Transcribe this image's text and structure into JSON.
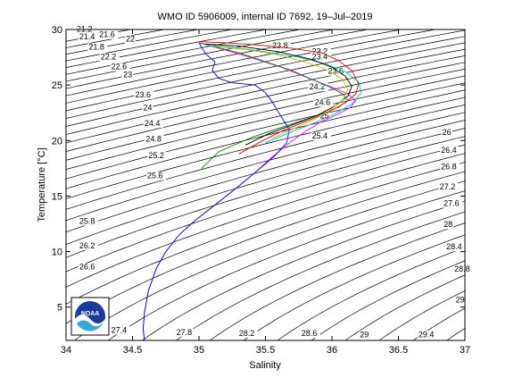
{
  "chart_data": {
    "type": "line",
    "title": "WMO ID 5906009, internal ID 7692, 19–Jul–2019",
    "xlabel": "Salinity",
    "ylabel": "Temperature [°C]",
    "xlim": [
      34,
      37
    ],
    "ylim": [
      2,
      30
    ],
    "x_ticks": [
      34,
      34.5,
      35,
      35.5,
      36,
      36.5,
      37
    ],
    "x_tick_labels": [
      "34",
      "34.5",
      "35",
      "35.5",
      "36",
      "36.5",
      "37"
    ],
    "y_ticks": [
      5,
      10,
      15,
      20,
      25,
      30
    ],
    "y_tick_labels": [
      "5",
      "10",
      "15",
      "20",
      "25",
      "30"
    ],
    "grid": false,
    "legend": "none",
    "logo": "NOAA",
    "density_contours": {
      "levels": [
        21.2,
        21.4,
        21.6,
        21.8,
        22,
        22.2,
        22.4,
        22.6,
        22.8,
        23,
        23.2,
        23.4,
        23.6,
        23.8,
        24,
        24.2,
        24.4,
        24.6,
        24.8,
        25,
        25.2,
        25.4,
        25.6,
        25.8,
        26,
        26.2,
        26.4,
        26.6,
        26.8,
        27,
        27.2,
        27.4,
        27.6,
        27.8,
        28,
        28.2,
        28.4,
        28.6,
        28.8,
        29,
        29.2,
        29.4
      ],
      "labels": [
        {
          "text": "21.2",
          "s": 34.08,
          "t": 29.8
        },
        {
          "text": "21.4",
          "s": 34.1,
          "t": 29.1
        },
        {
          "text": "21.6",
          "s": 34.25,
          "t": 29.3
        },
        {
          "text": "21.8",
          "s": 34.17,
          "t": 28.2
        },
        {
          "text": "22",
          "s": 34.45,
          "t": 28.9
        },
        {
          "text": "22.2",
          "s": 34.26,
          "t": 27.3
        },
        {
          "text": "22.6",
          "s": 34.34,
          "t": 26.4
        },
        {
          "text": "23",
          "s": 34.43,
          "t": 25.7
        },
        {
          "text": "23.6",
          "s": 34.52,
          "t": 23.9
        },
        {
          "text": "24",
          "s": 34.58,
          "t": 22.7
        },
        {
          "text": "24.4",
          "s": 34.59,
          "t": 21.3
        },
        {
          "text": "24.8",
          "s": 34.6,
          "t": 19.9
        },
        {
          "text": "25.2",
          "s": 34.62,
          "t": 18.4
        },
        {
          "text": "25.6",
          "s": 34.61,
          "t": 16.6
        },
        {
          "text": "25.8",
          "s": 34.1,
          "t": 12.5
        },
        {
          "text": "26.2",
          "s": 34.1,
          "t": 10.3
        },
        {
          "text": "26.6",
          "s": 34.1,
          "t": 8.4
        },
        {
          "text": "27.4",
          "s": 34.34,
          "t": 2.7
        },
        {
          "text": "27.8",
          "s": 34.83,
          "t": 2.5
        },
        {
          "text": "28.2",
          "s": 35.3,
          "t": 2.4
        },
        {
          "text": "28.6",
          "s": 35.77,
          "t": 2.4
        },
        {
          "text": "29",
          "s": 36.21,
          "t": 2.3
        },
        {
          "text": "29.4",
          "s": 36.65,
          "t": 2.3
        },
        {
          "text": "26",
          "s": 36.83,
          "t": 20.5
        },
        {
          "text": "26.4",
          "s": 36.82,
          "t": 18.9
        },
        {
          "text": "26.8",
          "s": 36.82,
          "t": 17.4
        },
        {
          "text": "27.2",
          "s": 36.81,
          "t": 15.6
        },
        {
          "text": "27.6",
          "s": 36.84,
          "t": 14.1
        },
        {
          "text": "28",
          "s": 36.84,
          "t": 12.2
        },
        {
          "text": "28.4",
          "s": 36.86,
          "t": 10.2
        },
        {
          "text": "28.8",
          "s": 36.92,
          "t": 8.2
        },
        {
          "text": "29",
          "s": 36.93,
          "t": 5.4
        },
        {
          "text": "23.2",
          "s": 35.85,
          "t": 27.8
        },
        {
          "text": "23.4",
          "s": 35.85,
          "t": 27.3
        },
        {
          "text": "23.6",
          "s": 35.97,
          "t": 26.0
        },
        {
          "text": "23.8",
          "s": 35.55,
          "t": 28.3
        },
        {
          "text": "24.2",
          "s": 35.83,
          "t": 24.6
        },
        {
          "text": "24.6",
          "s": 35.87,
          "t": 23.2
        },
        {
          "text": "25",
          "s": 35.91,
          "t": 22.0
        },
        {
          "text": "25.4",
          "s": 35.85,
          "t": 20.2
        }
      ]
    },
    "series": [
      {
        "color": "#ff00ff",
        "x": [
          34.59,
          34.58,
          34.59,
          34.62,
          34.68,
          34.75,
          34.85,
          34.97,
          35.12,
          35.28,
          35.42,
          35.55,
          35.68,
          35.8,
          35.92,
          36.05,
          36.14,
          36.18,
          36.12,
          36.0,
          35.85,
          35.62,
          35.3,
          35.0
        ],
        "y": [
          2,
          3,
          4.5,
          6.5,
          8.5,
          10,
          11.5,
          12.8,
          14.2,
          15.7,
          17.1,
          18.5,
          19.8,
          20.8,
          21.7,
          22.4,
          23,
          23.6,
          24.2,
          24.8,
          25.5,
          26.6,
          27.8,
          28.8
        ]
      },
      {
        "color": "#0000ff",
        "x": [
          34.59,
          34.58,
          34.59,
          34.62,
          34.68,
          34.75,
          34.85,
          34.97,
          35.12,
          35.28,
          35.42,
          35.56,
          35.66,
          35.68,
          35.6,
          35.55,
          35.5,
          35.42,
          35.25,
          35.15,
          35.1,
          35.12,
          35.05,
          35.0
        ],
        "y": [
          2,
          3,
          4.5,
          6.5,
          8.5,
          10,
          11.5,
          12.8,
          14.2,
          15.7,
          17.1,
          18.5,
          19.8,
          21.0,
          22.5,
          23.5,
          24.3,
          25.0,
          25.2,
          25.6,
          26.3,
          27.1,
          27.8,
          28.8
        ]
      },
      {
        "color": "#008000",
        "x": [
          35.0,
          35.1,
          35.3,
          35.5,
          35.7,
          35.85,
          35.97,
          36.08,
          36.12,
          36.05,
          35.9,
          35.7,
          35.4,
          35.15,
          35.02
        ],
        "y": [
          28.8,
          28.5,
          27.9,
          27.1,
          26.3,
          25.5,
          24.9,
          24.2,
          23.6,
          23.0,
          22.3,
          21.5,
          20.3,
          19.0,
          17.5
        ]
      },
      {
        "color": "#ff0000",
        "x": [
          35.0,
          35.2,
          35.45,
          35.7,
          35.92,
          36.05,
          36.15,
          36.2,
          36.18,
          36.1,
          35.98,
          35.82,
          35.65,
          35.48,
          35.3
        ],
        "y": [
          28.9,
          28.8,
          28.6,
          28.3,
          27.9,
          27.2,
          26.3,
          25.1,
          24.2,
          23.4,
          22.6,
          21.8,
          21.0,
          20.0,
          18.8
        ]
      },
      {
        "color": "#00bfbf",
        "x": [
          35.05,
          35.25,
          35.5,
          35.75,
          35.95,
          36.1,
          36.2,
          36.22,
          36.15,
          36.02,
          35.85,
          35.68,
          35.5
        ],
        "y": [
          28.6,
          28.4,
          28.0,
          27.5,
          26.9,
          26.2,
          25.3,
          24.3,
          23.3,
          22.4,
          21.5,
          20.7,
          19.8
        ]
      },
      {
        "color": "#000000",
        "x": [
          35.05,
          35.3,
          35.6,
          35.85,
          36.0,
          36.1,
          36.15,
          36.12,
          36.02,
          35.88,
          35.7,
          35.52,
          35.35
        ],
        "y": [
          28.7,
          28.5,
          28.0,
          27.3,
          26.6,
          25.8,
          24.9,
          24.0,
          23.1,
          22.2,
          21.4,
          20.6,
          19.6
        ]
      },
      {
        "color": "#bfbf00",
        "x": [
          35.1,
          35.35,
          35.6,
          35.82,
          35.98,
          36.08,
          36.12,
          36.08,
          35.98,
          35.85,
          35.7,
          35.55
        ],
        "y": [
          28.5,
          28.2,
          27.7,
          27.0,
          26.3,
          25.5,
          24.6,
          23.6,
          22.7,
          21.8,
          21.0,
          20.2
        ]
      }
    ]
  }
}
